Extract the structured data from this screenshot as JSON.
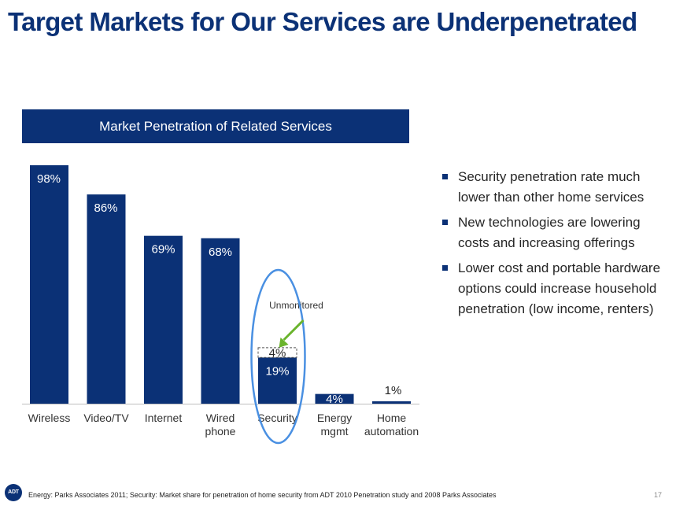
{
  "title": "Target Markets for Our Services are Underpenetrated",
  "chart_data": {
    "type": "bar",
    "title": "Market Penetration of Related Services",
    "categories": [
      [
        "Wireless"
      ],
      [
        "Video/TV"
      ],
      [
        "Internet"
      ],
      [
        "Wired",
        "phone"
      ],
      [
        "Security"
      ],
      [
        "Energy",
        "mgmt"
      ],
      [
        "Home",
        "automation"
      ]
    ],
    "values": [
      98,
      86,
      69,
      68,
      19,
      4,
      1
    ],
    "value_labels": [
      "98%",
      "86%",
      "69%",
      "68%",
      "19%",
      "4%",
      "1%"
    ],
    "unmonitored_addition": {
      "category": "Security",
      "value": 4,
      "label": "4%"
    },
    "annotation": "Unmonitored",
    "ylim": [
      0,
      100
    ],
    "grid": false,
    "legend": "none",
    "colors": {
      "bar": "#0b3176",
      "highlight_circle": "#4a90e2",
      "arrow": "#6ab42d"
    }
  },
  "bullets": [
    "Security penetration rate much lower than other home services",
    "New technologies are lowering costs and increasing offerings",
    "Lower cost and portable hardware options could increase household penetration (low income, renters)"
  ],
  "logo_text": "ADT",
  "footnote": "Energy: Parks Associates 2011; Security: Market share for penetration of home security from ADT 2010 Penetration study and 2008 Parks Associates",
  "page_number": "17"
}
